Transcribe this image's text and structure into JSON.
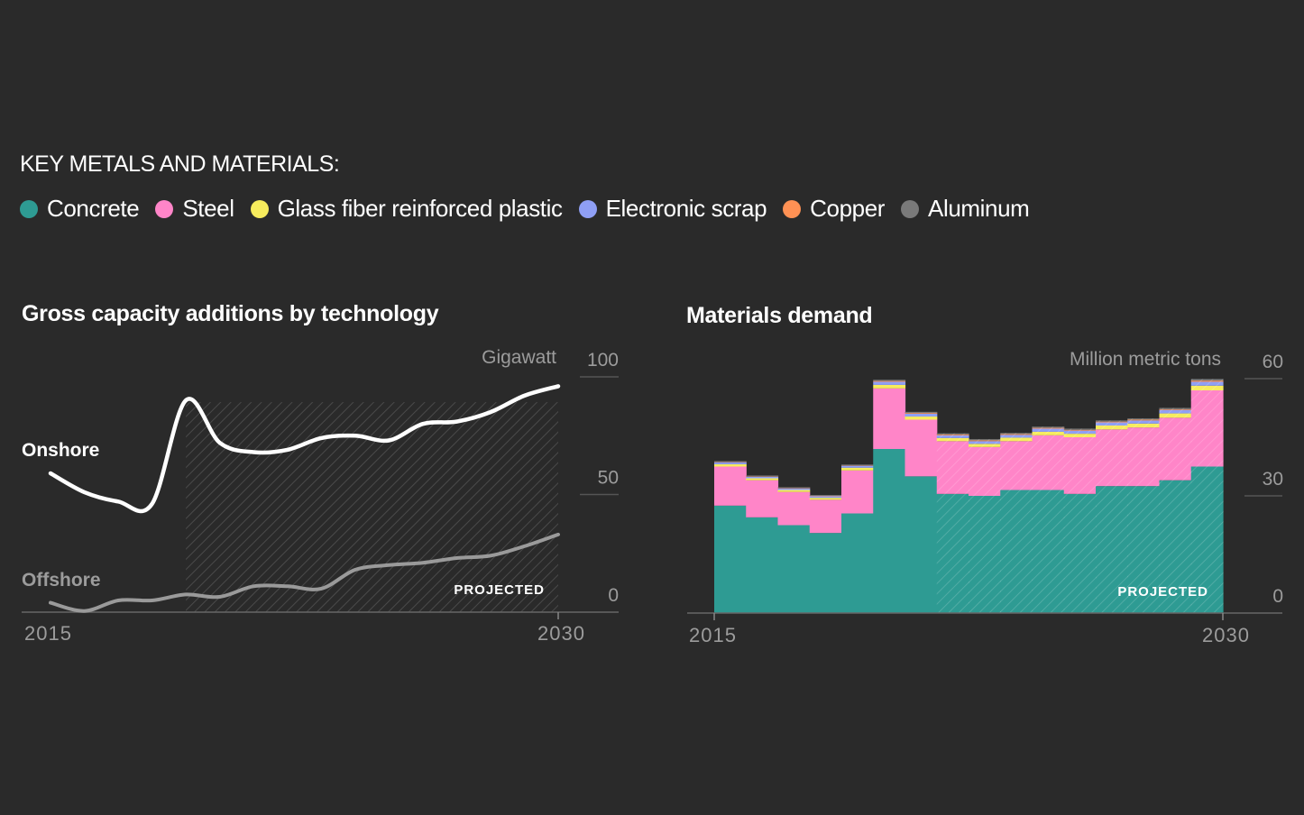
{
  "legend": {
    "title": "KEY METALS AND MATERIALS:",
    "items": [
      {
        "label": "Concrete",
        "color": "#2e9b93"
      },
      {
        "label": "Steel",
        "color": "#ff85c8"
      },
      {
        "label": "Glass fiber reinforced plastic",
        "color": "#f7ec5d"
      },
      {
        "label": "Electronic scrap",
        "color": "#8f9ff5"
      },
      {
        "label": "Copper",
        "color": "#ff9154"
      },
      {
        "label": "Aluminum",
        "color": "#7a7a7a"
      }
    ]
  },
  "projected_label": "PROJECTED",
  "chart_data": [
    {
      "type": "line",
      "title": "Gross capacity additions by technology",
      "unit": "Gigawatt",
      "x": [
        2015,
        2016,
        2017,
        2018,
        2019,
        2020,
        2021,
        2022,
        2023,
        2024,
        2025,
        2026,
        2027,
        2028,
        2029,
        2030
      ],
      "ylim": [
        0,
        100
      ],
      "yticks": [
        0,
        50,
        100
      ],
      "xtick_labels": [
        "2015",
        "2030"
      ],
      "projected_from": 2019,
      "series": [
        {
          "name": "Onshore",
          "color": "#ffffff",
          "values": [
            59,
            51,
            47,
            46,
            90,
            72,
            68,
            69,
            74,
            75,
            73,
            80,
            81,
            85,
            92,
            96
          ]
        },
        {
          "name": "Offshore",
          "color": "#9a9a9a",
          "values": [
            4,
            0.5,
            5,
            5,
            7.5,
            6.5,
            11,
            11,
            10,
            18,
            20,
            21,
            23,
            24,
            28,
            33
          ]
        }
      ]
    },
    {
      "type": "bar",
      "stacked": true,
      "title": "Materials demand",
      "unit": "Million metric tons",
      "x": [
        2015,
        2016,
        2017,
        2018,
        2019,
        2020,
        2021,
        2022,
        2023,
        2024,
        2025,
        2026,
        2027,
        2028,
        2029,
        2030
      ],
      "ylim": [
        0,
        60
      ],
      "yticks": [
        0,
        30,
        60
      ],
      "xtick_labels": [
        "2015",
        "2030"
      ],
      "projected_from": 2022,
      "series": [
        {
          "name": "Concrete",
          "color": "#2e9b93",
          "values": [
            27.5,
            24.5,
            22.5,
            20.5,
            25.5,
            42,
            35,
            30.5,
            30,
            31.5,
            31.5,
            30.5,
            32.5,
            32.5,
            34,
            37.5
          ]
        },
        {
          "name": "Steel",
          "color": "#ff85c8",
          "values": [
            10,
            9.5,
            8.5,
            8.5,
            11,
            15.5,
            14.5,
            13.5,
            12.5,
            12.5,
            14,
            14.5,
            14.5,
            15,
            16,
            19.5
          ]
        },
        {
          "name": "Glass fiber reinforced plastic",
          "color": "#f7ec5d",
          "values": [
            0.6,
            0.5,
            0.5,
            0.5,
            0.7,
            0.9,
            0.8,
            0.8,
            0.8,
            0.9,
            0.9,
            0.9,
            1.0,
            1.0,
            1.1,
            1.2
          ]
        },
        {
          "name": "Electronic scrap",
          "color": "#8f9ff5",
          "values": [
            0.5,
            0.4,
            0.4,
            0.4,
            0.5,
            0.8,
            0.7,
            0.7,
            0.7,
            0.7,
            0.8,
            0.8,
            0.8,
            0.8,
            0.9,
            1.0
          ]
        },
        {
          "name": "Copper",
          "color": "#ff9154",
          "values": [
            0.1,
            0.1,
            0.1,
            0.1,
            0.1,
            0.2,
            0.2,
            0.2,
            0.2,
            0.2,
            0.2,
            0.2,
            0.2,
            0.2,
            0.2,
            0.3
          ]
        },
        {
          "name": "Aluminum",
          "color": "#7a7a7a",
          "values": [
            0.2,
            0.2,
            0.2,
            0.2,
            0.2,
            0.3,
            0.3,
            0.3,
            0.3,
            0.3,
            0.3,
            0.3,
            0.3,
            0.3,
            0.3,
            0.4
          ]
        }
      ]
    }
  ]
}
